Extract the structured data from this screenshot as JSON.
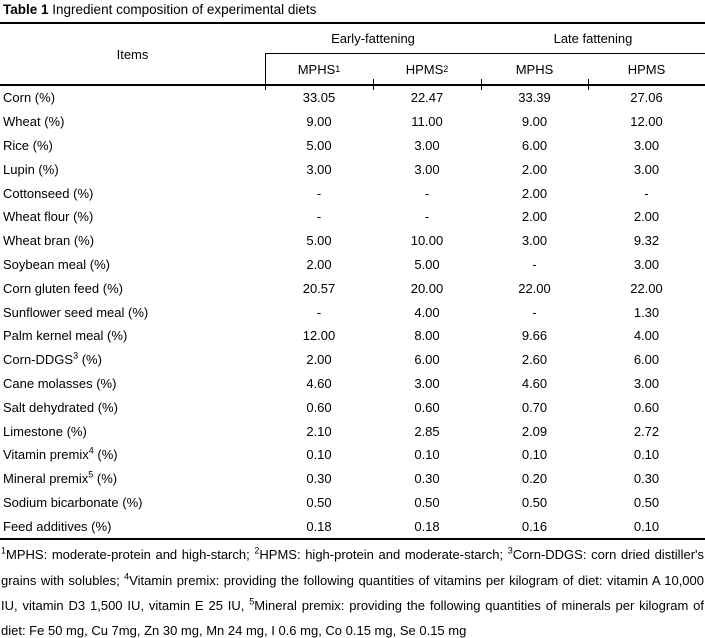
{
  "title": {
    "bold": "Table 1",
    "rest": " Ingredient composition of experimental diets"
  },
  "table": {
    "items_header": "Items",
    "groups": [
      {
        "label": "Early-fattening",
        "subcols": [
          {
            "name": "MPHS",
            "sup": "1"
          },
          {
            "name": "HPMS",
            "sup": "2"
          }
        ]
      },
      {
        "label": "Late fattening",
        "subcols": [
          {
            "name": "MPHS",
            "sup": ""
          },
          {
            "name": "HPMS",
            "sup": ""
          }
        ]
      }
    ],
    "rows": [
      {
        "name": "Corn",
        "sup": "",
        "post": " (%)",
        "values": [
          "33.05",
          "22.47",
          "33.39",
          "27.06"
        ]
      },
      {
        "name": "Wheat",
        "sup": "",
        "post": " (%)",
        "values": [
          "9.00",
          "11.00",
          "9.00",
          "12.00"
        ]
      },
      {
        "name": "Rice",
        "sup": "",
        "post": " (%)",
        "values": [
          "5.00",
          "3.00",
          "6.00",
          "3.00"
        ]
      },
      {
        "name": "Lupin",
        "sup": "",
        "post": " (%)",
        "values": [
          "3.00",
          "3.00",
          "2.00",
          "3.00"
        ]
      },
      {
        "name": "Cottonseed",
        "sup": "",
        "post": " (%)",
        "values": [
          "-",
          "-",
          "2.00",
          "-"
        ]
      },
      {
        "name": "Wheat flour",
        "sup": "",
        "post": " (%)",
        "values": [
          "-",
          "-",
          "2.00",
          "2.00"
        ]
      },
      {
        "name": "Wheat bran",
        "sup": "",
        "post": " (%)",
        "values": [
          "5.00",
          "10.00",
          "3.00",
          "9.32"
        ]
      },
      {
        "name": "Soybean meal",
        "sup": "",
        "post": " (%)",
        "values": [
          "2.00",
          "5.00",
          "-",
          "3.00"
        ]
      },
      {
        "name": "Corn gluten feed",
        "sup": "",
        "post": " (%)",
        "values": [
          "20.57",
          "20.00",
          "22.00",
          "22.00"
        ]
      },
      {
        "name": "Sunflower seed meal",
        "sup": "",
        "post": " (%)",
        "values": [
          "-",
          "4.00",
          "-",
          "1.30"
        ]
      },
      {
        "name": "Palm kernel meal",
        "sup": "",
        "post": " (%)",
        "values": [
          "12.00",
          "8.00",
          "9.66",
          "4.00"
        ]
      },
      {
        "name": "Corn-DDGS",
        "sup": "3",
        "post": " (%)",
        "values": [
          "2.00",
          "6.00",
          "2.60",
          "6.00"
        ]
      },
      {
        "name": "Cane molasses",
        "sup": "",
        "post": " (%)",
        "values": [
          "4.60",
          "3.00",
          "4.60",
          "3.00"
        ]
      },
      {
        "name": "Salt dehydrated",
        "sup": "",
        "post": " (%)",
        "values": [
          "0.60",
          "0.60",
          "0.70",
          "0.60"
        ]
      },
      {
        "name": "Limestone",
        "sup": "",
        "post": " (%)",
        "values": [
          "2.10",
          "2.85",
          "2.09",
          "2.72"
        ]
      },
      {
        "name": "Vitamin premix",
        "sup": "4",
        "post": " (%)",
        "values": [
          "0.10",
          "0.10",
          "0.10",
          "0.10"
        ]
      },
      {
        "name": "Mineral premix",
        "sup": "5",
        "post": " (%)",
        "values": [
          "0.30",
          "0.30",
          "0.20",
          "0.30"
        ]
      },
      {
        "name": "Sodium bicarbonate",
        "sup": "",
        "post": " (%)",
        "values": [
          "0.50",
          "0.50",
          "0.50",
          "0.50"
        ]
      },
      {
        "name": "Feed additives",
        "sup": "",
        "post": " (%)",
        "values": [
          "0.18",
          "0.18",
          "0.16",
          "0.10"
        ]
      }
    ]
  },
  "footnote": {
    "parts": [
      {
        "sup": "1"
      },
      {
        "text": "MPHS: moderate-protein and high-starch; "
      },
      {
        "sup": "2"
      },
      {
        "text": "HPMS: high-protein and moderate-starch; "
      },
      {
        "sup": "3"
      },
      {
        "text": "Corn-DDGS: corn dried distiller's grains with solubles; "
      },
      {
        "sup": "4"
      },
      {
        "text": "Vitamin premix: providing the following quantities of vitamins per kilogram of diet: vitamin A 10,000 IU, vitamin D3 1,500 IU, vitamin E 25 IU, "
      },
      {
        "sup": "5"
      },
      {
        "text": "Mineral premix: providing the following quantities of minerals per kilogram of diet: Fe 50 mg, Cu 7mg, Zn 30 mg, Mn 24 mg, I 0.6 mg, Co 0.15 mg, Se 0.15 mg"
      }
    ]
  }
}
